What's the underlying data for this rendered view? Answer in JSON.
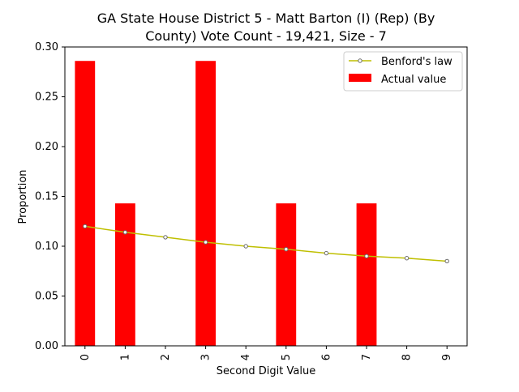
{
  "chart_data": {
    "type": "bar",
    "title_line1": "GA State House District 5 - Matt Barton (I) (Rep) (By",
    "title_line2": "County) Vote Count - 19,421, Size - 7",
    "xlabel": "Second Digit Value",
    "ylabel": "Proportion",
    "categories": [
      "0",
      "1",
      "2",
      "3",
      "4",
      "5",
      "6",
      "7",
      "8",
      "9"
    ],
    "ylim": [
      0,
      0.3
    ],
    "yticks": [
      "0.00",
      "0.05",
      "0.10",
      "0.15",
      "0.20",
      "0.25",
      "0.30"
    ],
    "grid": false,
    "legend_position": "top-right",
    "series": [
      {
        "name": "Benford's law",
        "kind": "line",
        "color": "#bfbf00",
        "values": [
          0.12,
          0.114,
          0.109,
          0.104,
          0.1,
          0.097,
          0.093,
          0.09,
          0.088,
          0.085
        ]
      },
      {
        "name": "Actual value",
        "kind": "bar",
        "color": "#ff0000",
        "values": [
          0.286,
          0.143,
          0.0,
          0.286,
          0.0,
          0.143,
          0.0,
          0.143,
          0.0,
          0.0
        ]
      }
    ]
  }
}
